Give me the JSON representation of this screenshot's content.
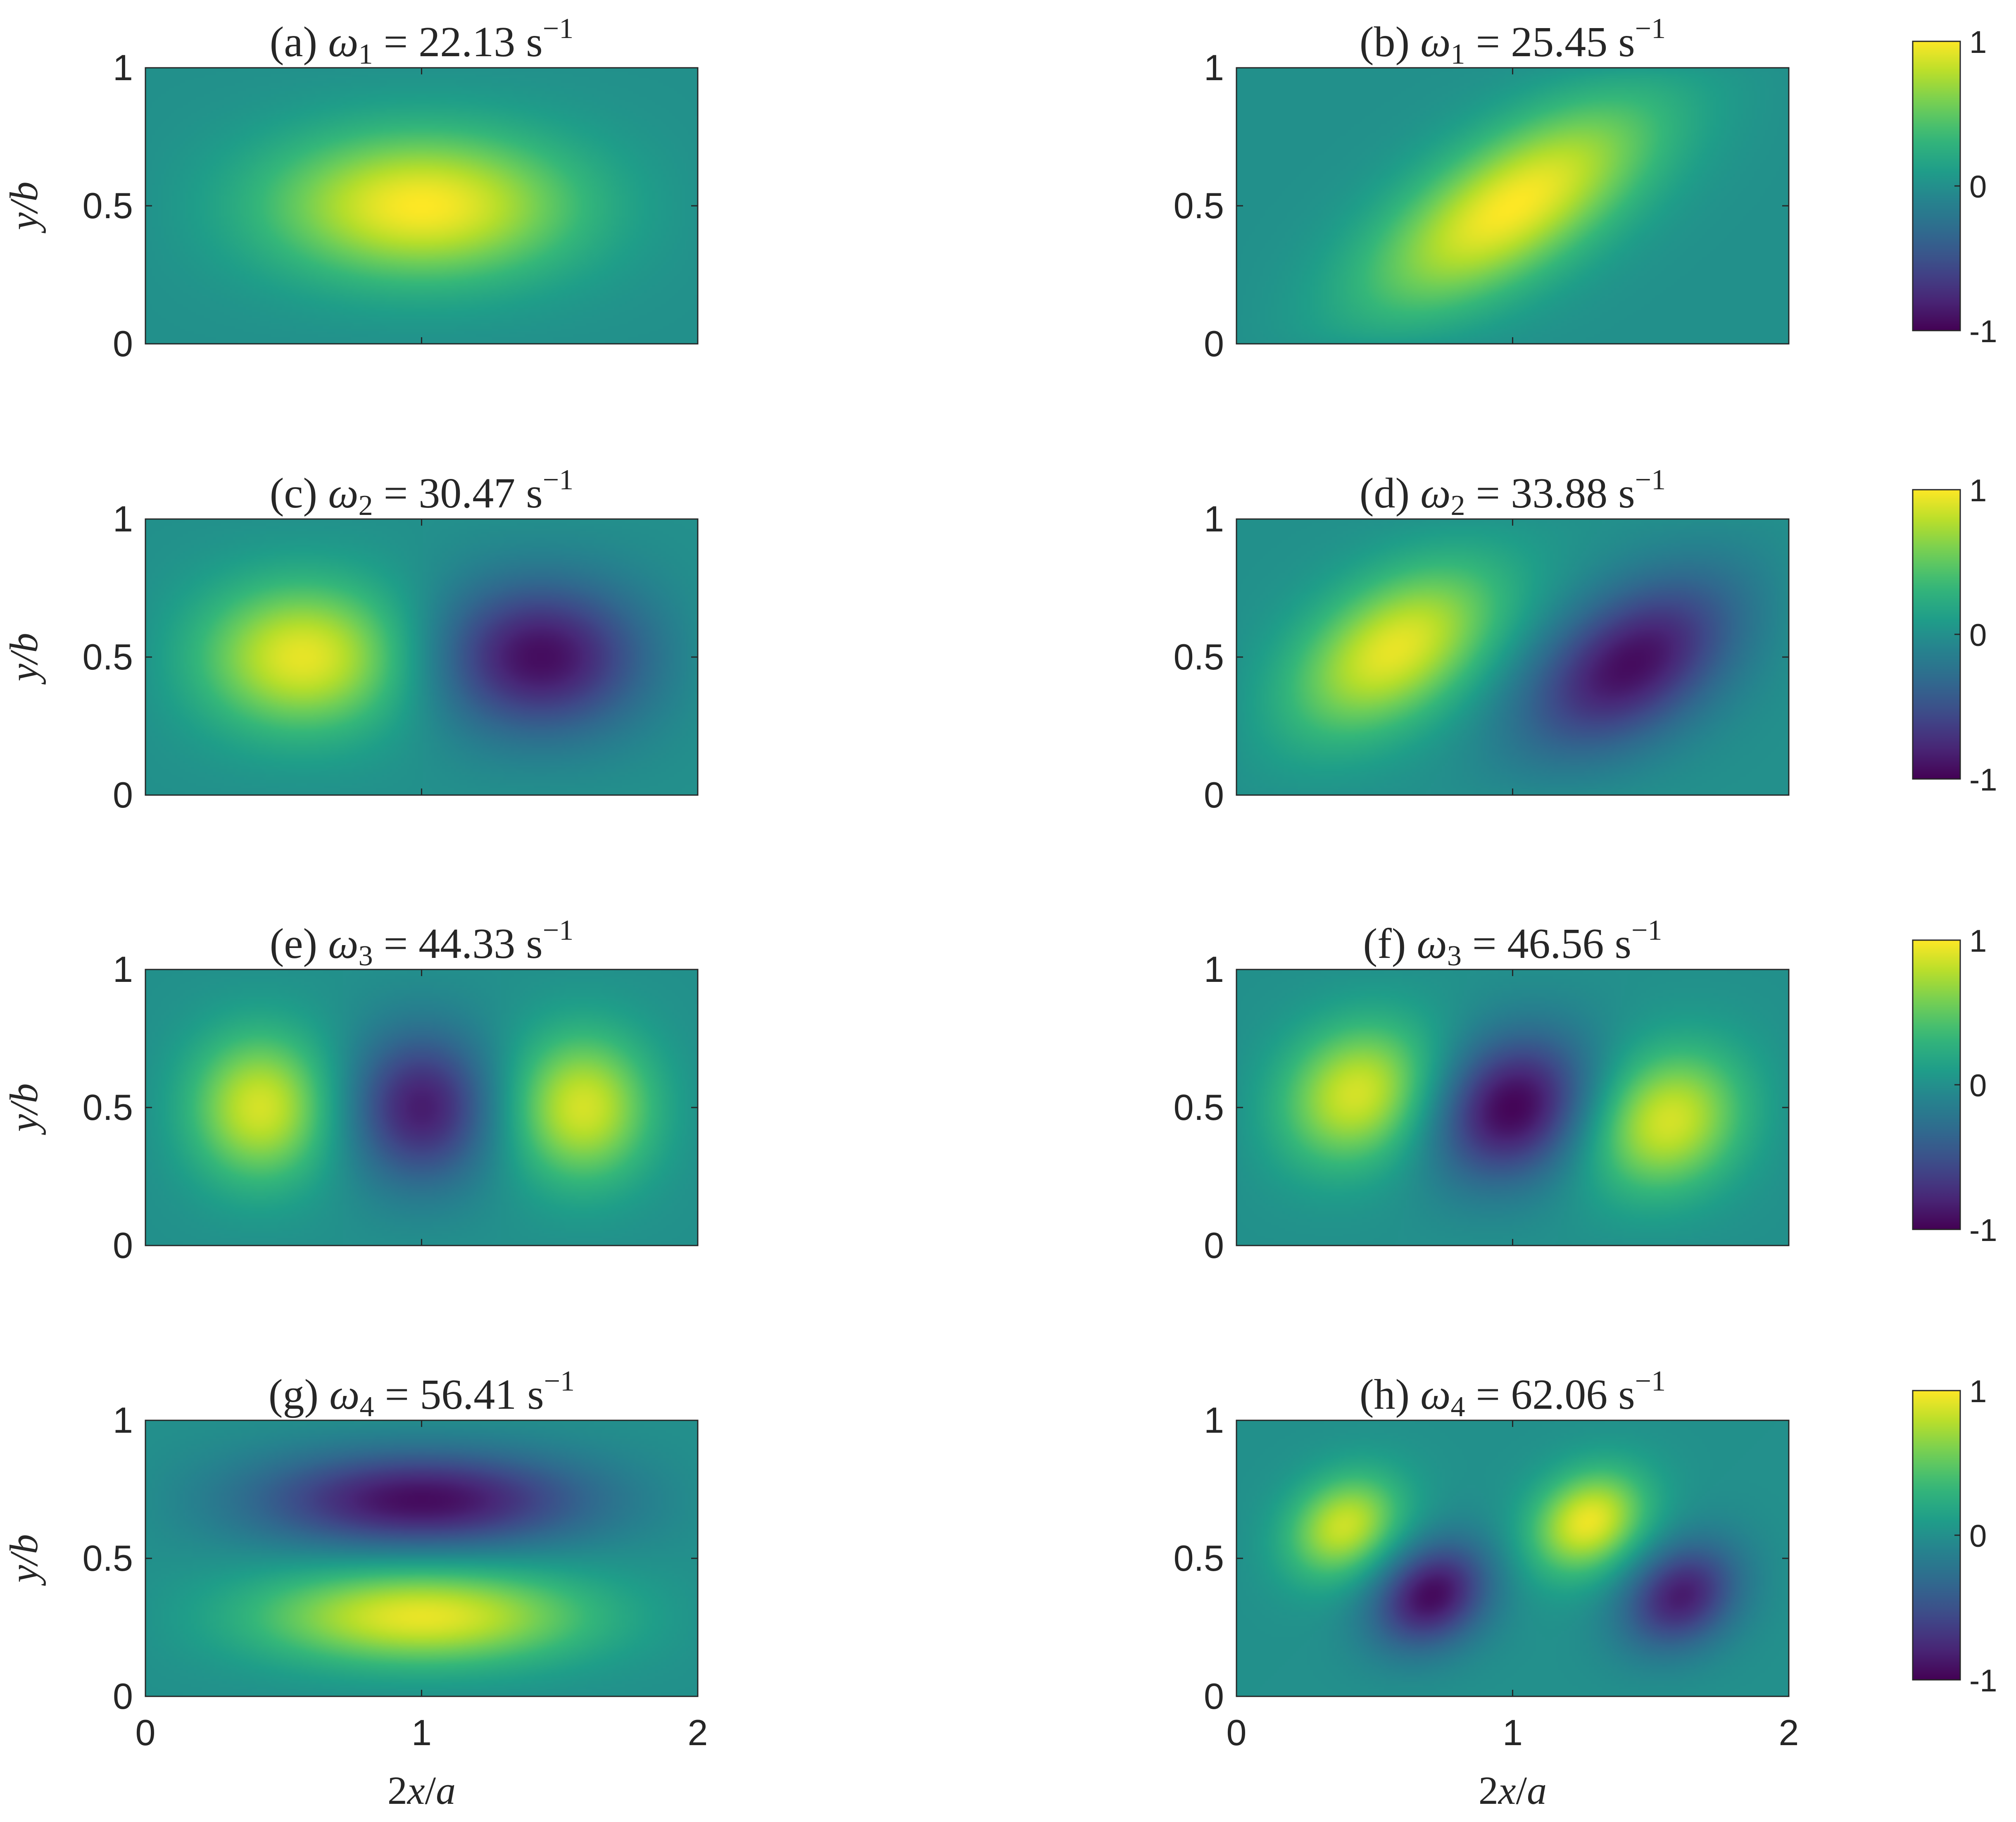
{
  "chart_data": {
    "type": "heatmap",
    "colormap": "viridis",
    "clim": [
      -1,
      1
    ],
    "colorbar_ticks": [
      "1",
      "0",
      "-1"
    ],
    "xlabel": "2x/a",
    "ylabel": "y/b",
    "xlim": [
      0,
      2
    ],
    "ylim": [
      0,
      1
    ],
    "x_ticks": [
      "0",
      "1",
      "2"
    ],
    "y_ticks": [
      "0",
      "0.5",
      "1"
    ],
    "grid": false,
    "panels": [
      {
        "id": "a",
        "mode": 1,
        "omega": "22.13",
        "unit": "s",
        "exponent": "−1",
        "lobes": [
          {
            "x": 1.0,
            "y": 0.5,
            "amp": 1
          }
        ]
      },
      {
        "id": "b",
        "mode": 1,
        "omega": "25.45",
        "unit": "s",
        "exponent": "−1",
        "lobes": [
          {
            "x": 1.0,
            "y": 0.5,
            "amp": 1
          }
        ]
      },
      {
        "id": "c",
        "mode": 2,
        "omega": "30.47",
        "unit": "s",
        "exponent": "−1",
        "lobes": [
          {
            "x": 0.55,
            "y": 0.5,
            "amp": 1
          },
          {
            "x": 1.45,
            "y": 0.5,
            "amp": -1
          }
        ]
      },
      {
        "id": "d",
        "mode": 2,
        "omega": "33.88",
        "unit": "s",
        "exponent": "−1",
        "lobes": [
          {
            "x": 0.55,
            "y": 0.52,
            "amp": 1
          },
          {
            "x": 1.45,
            "y": 0.48,
            "amp": -1
          }
        ]
      },
      {
        "id": "e",
        "mode": 3,
        "omega": "44.33",
        "unit": "s",
        "exponent": "−1",
        "lobes": [
          {
            "x": 0.4,
            "y": 0.5,
            "amp": 1
          },
          {
            "x": 1.0,
            "y": 0.5,
            "amp": -0.85
          },
          {
            "x": 1.6,
            "y": 0.5,
            "amp": 1
          }
        ]
      },
      {
        "id": "f",
        "mode": 3,
        "omega": "46.56",
        "unit": "s",
        "exponent": "−1",
        "lobes": [
          {
            "x": 0.42,
            "y": 0.55,
            "amp": 1
          },
          {
            "x": 1.0,
            "y": 0.5,
            "amp": -1
          },
          {
            "x": 1.58,
            "y": 0.45,
            "amp": 1
          }
        ]
      },
      {
        "id": "g",
        "mode": 4,
        "omega": "56.41",
        "unit": "s",
        "exponent": "−1",
        "lobes": [
          {
            "x": 1.0,
            "y": 0.72,
            "amp": -1
          },
          {
            "x": 1.0,
            "y": 0.28,
            "amp": 1
          }
        ]
      },
      {
        "id": "h",
        "mode": 4,
        "omega": "62.06",
        "unit": "s",
        "exponent": "−1",
        "lobes": [
          {
            "x": 0.38,
            "y": 0.62,
            "amp": 1
          },
          {
            "x": 0.7,
            "y": 0.36,
            "amp": -1
          },
          {
            "x": 1.28,
            "y": 0.64,
            "amp": 1
          },
          {
            "x": 1.62,
            "y": 0.36,
            "amp": -1
          }
        ]
      }
    ]
  }
}
